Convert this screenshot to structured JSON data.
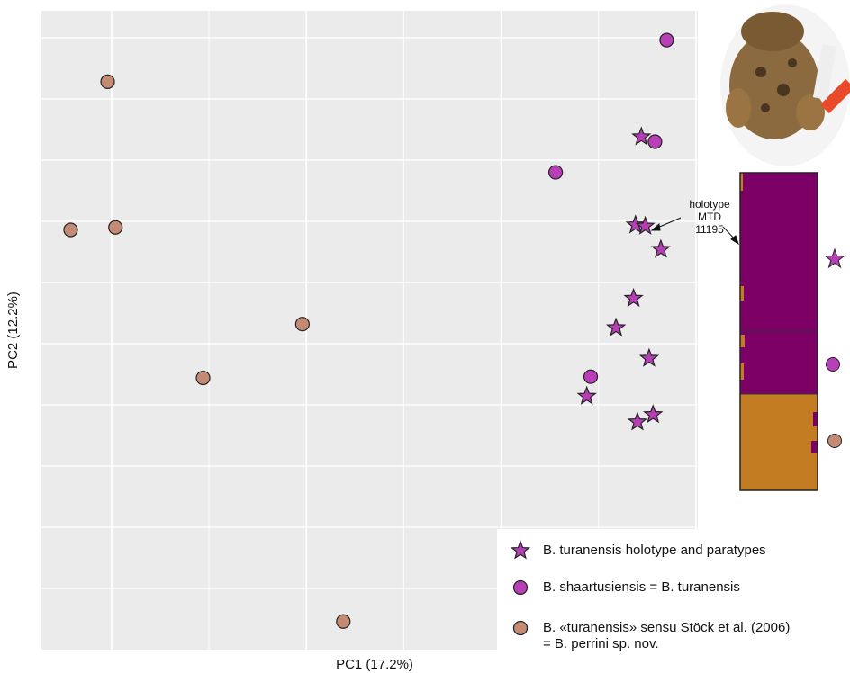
{
  "chart_data": {
    "type": "scatter",
    "xlabel": "PC1 (17.2%)",
    "ylabel": "PC2 (12.2%)",
    "xlim": [
      -0.36,
      3.01
    ],
    "ylim": [
      -2.0,
      3.22
    ],
    "grid": true,
    "xgrid": [
      0,
      0.5,
      1,
      1.5,
      2,
      2.5,
      3
    ],
    "ygrid": [
      -1.5,
      -1,
      -0.5,
      0,
      0.5,
      1,
      1.5,
      2,
      2.5,
      3
    ],
    "annotation": "holotype\nMTD\n11195",
    "series": [
      {
        "name": "B. turanensis holotype and paratypes",
        "marker": "star",
        "color": "#b63fb6",
        "x": [
          2.72,
          2.69,
          2.74,
          2.82,
          2.68,
          2.59,
          2.76,
          2.44,
          2.78,
          2.7
        ],
        "values": [
          2.19,
          1.47,
          1.46,
          1.27,
          0.87,
          0.63,
          0.38,
          0.07,
          -0.08,
          -0.14
        ]
      },
      {
        "name": "B. shaartusiensis = B. turanensis",
        "marker": "circle",
        "color": "#b93fb9",
        "x": [
          2.85,
          2.79,
          2.28,
          2.46
        ],
        "values": [
          2.98,
          2.15,
          1.9,
          0.23
        ]
      },
      {
        "name": "B. «turanensis» sensu Stöck et al. (2006)\n= B. perrini sp. nov.",
        "marker": "circle",
        "color": "#c38b73",
        "x": [
          -0.02,
          -0.21,
          0.02,
          0.98,
          0.47,
          1.19
        ],
        "values": [
          2.64,
          1.43,
          1.45,
          0.66,
          0.22,
          -1.77
        ]
      }
    ]
  }
}
